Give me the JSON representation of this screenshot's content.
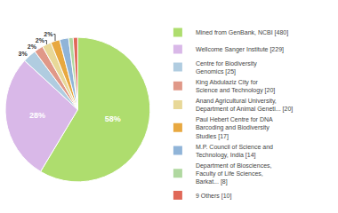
{
  "chart_data": {
    "type": "pie",
    "categories": [
      "Mined from GenBank, NCBI [480]",
      "Wellcome Sanger Institute [229]",
      "Centre for Biodiversity\nGenomics [25]",
      "King Abdulaziz City for\nScience and Technology [20]",
      "Anand Agricultural University,\nDepartment of Animal Geneti... [20]",
      "Paul Hebert Centre for DNA\nBarcoding and Biodiversity\nStudies [17]",
      "M.P. Council of Science and\nTechnology, India [14]",
      "Department of Biosciences,\nFaculty of Life Sciences,\nBarkat... [8]",
      "9 Others [10]"
    ],
    "values": [
      58,
      28,
      3,
      2,
      2,
      2,
      2,
      1,
      1
    ],
    "value_labels": [
      "58%",
      "28%",
      "3%",
      "2%",
      "2%",
      "2%",
      null,
      null,
      null
    ],
    "colors": [
      "#aedd6e",
      "#d9b8e8",
      "#b0cce0",
      "#e09888",
      "#e8d898",
      "#e8a840",
      "#90b4d8",
      "#b0d8a0",
      "#e06858"
    ],
    "data_labels": true,
    "legend": "right"
  }
}
